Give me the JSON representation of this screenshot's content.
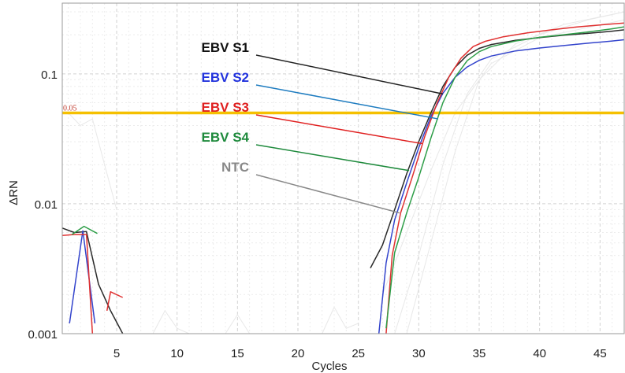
{
  "chart_data": {
    "type": "line",
    "xlabel": "Cycles",
    "ylabel": "ΔRN",
    "xlim": [
      0.5,
      47
    ],
    "ylim": [
      0.001,
      0.35
    ],
    "y_scale": "log",
    "grid": true,
    "x_ticks": [
      "5",
      "10",
      "15",
      "20",
      "25",
      "30",
      "35",
      "40",
      "45"
    ],
    "y_ticks": [
      "0.1",
      "0.01",
      "0.001"
    ],
    "threshold": {
      "value": 0.05,
      "label": "0.05",
      "color": "#f5c000"
    },
    "series": [
      {
        "name": "EBV S1",
        "color": "#2a2a2a",
        "segments": [
          {
            "x": [
              0.5,
              1.5,
              2.5,
              3.5,
              4.5,
              5.5
            ],
            "y": [
              0.0065,
              0.006,
              0.0061,
              0.0024,
              0.0015,
              0.001
            ]
          },
          {
            "x": [
              26,
              27,
              28,
              29,
              30,
              31,
              32,
              33,
              34,
              35,
              36,
              38,
              40,
              42,
              44,
              46,
              47
            ],
            "y": [
              0.0032,
              0.0048,
              0.009,
              0.017,
              0.03,
              0.05,
              0.08,
              0.112,
              0.139,
              0.157,
              0.168,
              0.181,
              0.19,
              0.198,
              0.205,
              0.213,
              0.218
            ]
          }
        ]
      },
      {
        "name": "EBV S2",
        "color": "#3344cc",
        "segments": [
          {
            "x": [
              1.1,
              2.2,
              3.2
            ],
            "y": [
              0.0012,
              0.0062,
              0.0012
            ]
          },
          {
            "x": [
              26.7,
              27.3,
              28,
              29,
              30,
              31,
              32,
              33,
              34,
              35,
              36,
              38,
              40,
              42,
              44,
              46,
              47
            ],
            "y": [
              0.001,
              0.0035,
              0.0075,
              0.0145,
              0.027,
              0.047,
              0.071,
              0.094,
              0.113,
              0.127,
              0.137,
              0.15,
              0.158,
              0.165,
              0.172,
              0.179,
              0.183
            ]
          }
        ]
      },
      {
        "name": "EBV S3",
        "color": "#e03030",
        "segments": [
          {
            "x": [
              0.5,
              1.5,
              2.5,
              3.0
            ],
            "y": [
              0.0057,
              0.0058,
              0.0058,
              0.001
            ]
          },
          {
            "x": [
              4.2,
              4.5,
              5.5
            ],
            "y": [
              0.0015,
              0.0021,
              0.0019
            ]
          },
          {
            "x": [
              27.3,
              27.8,
              28.5,
              29.5,
              30.5,
              31.5,
              32.5,
              33.5,
              34.5,
              35.5,
              37,
              39,
              41,
              43,
              45,
              47
            ],
            "y": [
              0.001,
              0.004,
              0.0085,
              0.0165,
              0.033,
              0.059,
              0.095,
              0.132,
              0.162,
              0.178,
              0.193,
              0.207,
              0.218,
              0.229,
              0.238,
              0.246
            ]
          }
        ]
      },
      {
        "name": "EBV S4",
        "color": "#2e9e48",
        "segments": [
          {
            "x": [
              1.3,
              2.3,
              3.4
            ],
            "y": [
              0.0058,
              0.0067,
              0.0059
            ]
          },
          {
            "x": [
              27.3,
              28,
              29,
              30,
              31,
              32,
              33,
              34,
              35,
              36,
              38,
              40,
              42,
              44,
              46,
              47
            ],
            "y": [
              0.0011,
              0.0042,
              0.0085,
              0.016,
              0.032,
              0.06,
              0.094,
              0.126,
              0.148,
              0.162,
              0.179,
              0.191,
              0.2,
              0.21,
              0.222,
              0.23
            ]
          }
        ]
      },
      {
        "name": "NTC",
        "color": "#888888",
        "segments": []
      }
    ],
    "annotations": [
      {
        "label": "EBV S1",
        "color": "#111111",
        "line_color": "#222222",
        "target_x": 32.0,
        "target_y": 0.07
      },
      {
        "label": "EBV S2",
        "color": "#2233dd",
        "line_color": "#1e7cc0",
        "target_x": 31.6,
        "target_y": 0.045
      },
      {
        "label": "EBV S3",
        "color": "#e02020",
        "line_color": "#e02020",
        "target_x": 30.3,
        "target_y": 0.029
      },
      {
        "label": "EBV S4",
        "color": "#1e8a3c",
        "line_color": "#1e8a3c",
        "target_x": 29.2,
        "target_y": 0.018
      },
      {
        "label": "NTC",
        "color": "#888888",
        "line_color": "#888888",
        "target_x": 28.4,
        "target_y": 0.0085
      }
    ]
  }
}
